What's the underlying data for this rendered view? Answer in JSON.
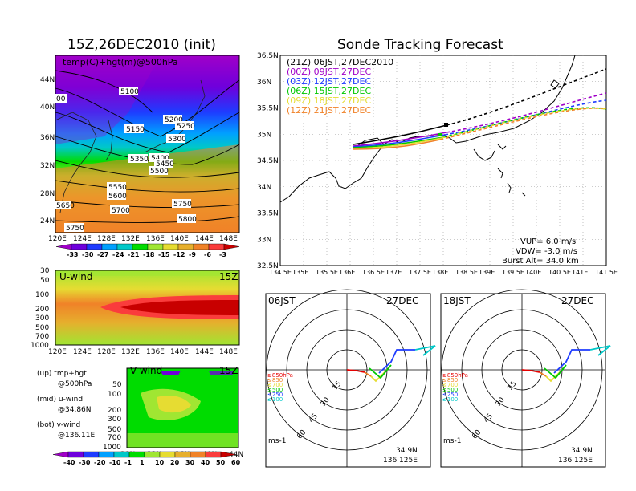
{
  "left_title": "15Z,26DEC2010 (init)",
  "right_title": "Sonde Tracking Forecast",
  "map_panel": {
    "label": "temp(C)+hgt(m)@500hPa",
    "lat_ticks": [
      "44N",
      "40N",
      "36N",
      "32N",
      "28N",
      "24N"
    ],
    "lon_ticks": [
      "120E",
      "124E",
      "128E",
      "132E",
      "136E",
      "140E",
      "144E",
      "148E"
    ],
    "contour_labels": [
      "5100",
      "5150",
      "5200",
      "5250",
      "5300",
      "5350",
      "5400",
      "5450",
      "5500",
      "5550",
      "5600",
      "5650",
      "5700",
      "5750",
      "5750",
      "5800",
      "00"
    ],
    "colorbar_labels": [
      "-33",
      "-30",
      "-27",
      "-24",
      "-21",
      "-18",
      "-15",
      "-12",
      "-9",
      "-6",
      "-3"
    ],
    "colorbar_colors": [
      "#a000c8",
      "#6e00dc",
      "#1e3cff",
      "#00a0ff",
      "#00c8c8",
      "#00dc00",
      "#a0e632",
      "#e6dc32",
      "#e6af2d",
      "#f08228",
      "#fa3c3c",
      "#c80000"
    ]
  },
  "u_panel": {
    "label": "U-wind",
    "time": "15Z",
    "p_ticks": [
      "30",
      "50",
      "100",
      "200",
      "300",
      "500",
      "700",
      "1000"
    ],
    "lon_ticks": [
      "120E",
      "124E",
      "128E",
      "132E",
      "136E",
      "140E",
      "144E",
      "148E"
    ]
  },
  "v_panel": {
    "label": "V-wind",
    "time": "15Z",
    "p_ticks": [
      "50",
      "100",
      "200",
      "300",
      "500",
      "700",
      "1000"
    ],
    "lat_ticks": [
      "28N",
      "32N",
      "36N",
      "40N",
      "44N"
    ],
    "colorbar_labels": [
      "-40",
      "-30",
      "-20",
      "-10",
      "-1",
      "1",
      "10",
      "20",
      "30",
      "40",
      "50",
      "60"
    ],
    "colorbar_colors": [
      "#a000c8",
      "#6e00dc",
      "#1e3cff",
      "#00a0ff",
      "#00c8c8",
      "#00dc00",
      "#a0e632",
      "#e6dc32",
      "#e6af2d",
      "#f08228",
      "#fa3c3c",
      "#c80000"
    ]
  },
  "legend_notes": [
    {
      "a": "(up) tmp+hgt",
      "b": "@500hPa"
    },
    {
      "a": "(mid) u-wind",
      "b": "@34.86N"
    },
    {
      "a": "(bot) v-wind",
      "b": "@136.11E"
    }
  ],
  "track_panel": {
    "lat_ticks": [
      "36.5N",
      "36N",
      "35.5N",
      "35N",
      "34.5N",
      "34N",
      "33.5N",
      "33N",
      "32.5N"
    ],
    "lon_ticks": [
      "134.5E",
      "135E",
      "135.5E",
      "136E",
      "136.5E",
      "137E",
      "137.5E",
      "138E",
      "138.5E",
      "139E",
      "139.5E",
      "140E",
      "140.5E",
      "141E",
      "141.5E"
    ],
    "runs": [
      {
        "text": "(21Z) 06JST,27DEC2010",
        "color": "#000000"
      },
      {
        "text": "(00Z) 09JST,27DEC",
        "color": "#a000c8"
      },
      {
        "text": "(03Z) 12JST,27DEC",
        "color": "#1e3cff"
      },
      {
        "text": "(06Z) 15JST,27DEC",
        "color": "#00c800"
      },
      {
        "text": "(09Z) 18JST,27DEC",
        "color": "#e6dc32"
      },
      {
        "text": "(12Z) 21JST,27DEC",
        "color": "#f08228"
      }
    ],
    "vup": "VUP= 6.0 m/s",
    "vdw": "VDW= -3.0 m/s",
    "burst": "Burst Alt= 34.0 km"
  },
  "hodographs": [
    {
      "time": "06JST",
      "date": "27DEC",
      "lat": "34.9N",
      "lon": "136.125E",
      "unit": "ms-1",
      "ring_labels": [
        "15",
        "30",
        "45",
        "60"
      ]
    },
    {
      "time": "18JST",
      "date": "27DEC",
      "lat": "34.9N",
      "lon": "136.125E",
      "unit": "ms-1",
      "ring_labels": [
        "15",
        "30",
        "45",
        "60"
      ]
    }
  ],
  "hodo_legend": [
    {
      "text": "≥850hPa",
      "color": "#e60000"
    },
    {
      "text": "≤850",
      "color": "#f08228"
    },
    {
      "text": "≤700",
      "color": "#e6dc32"
    },
    {
      "text": "≤500",
      "color": "#00c800"
    },
    {
      "text": "≤250",
      "color": "#1e3cff"
    },
    {
      "text": "≤100",
      "color": "#00c8c8"
    }
  ]
}
